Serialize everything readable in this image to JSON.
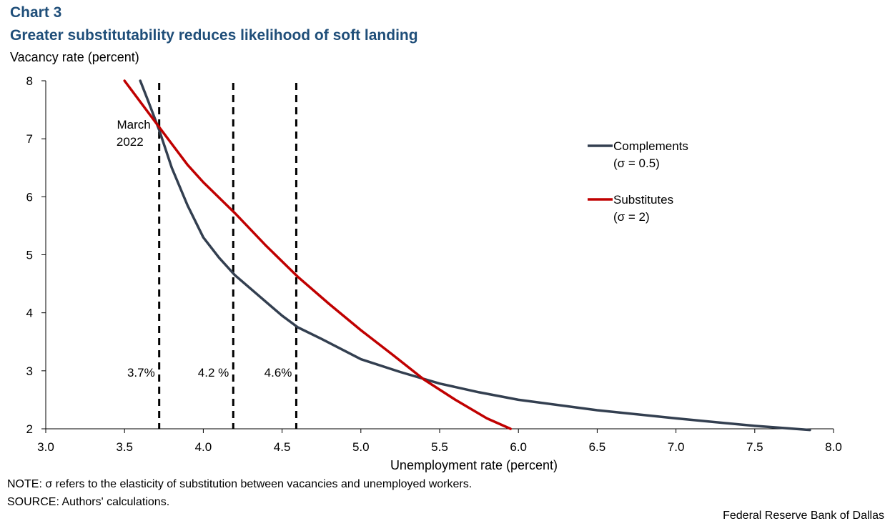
{
  "header": {
    "chart_label": "Chart 3",
    "title": "Greater substitutability reduces likelihood of soft landing",
    "y_axis_title": "Vacancy rate (percent)"
  },
  "footer": {
    "note": "NOTE: σ refers to the elasticity of substitution between vacancies and unemployed workers.",
    "source": "SOURCE: Authors' calculations.",
    "credit": "Federal Reserve  Bank of Dallas"
  },
  "chart_data": {
    "type": "line",
    "title": "Greater substitutability reduces likelihood of soft landing",
    "xlabel": "Unemployment  rate (percent)",
    "ylabel": "Vacancy rate (percent)",
    "xlim": [
      3.0,
      8.0
    ],
    "ylim": [
      2,
      8
    ],
    "x_ticks": [
      3.0,
      3.5,
      4.0,
      4.5,
      5.0,
      5.5,
      6.0,
      6.5,
      7.0,
      7.5,
      8.0
    ],
    "x_tick_labels": [
      "3.0",
      "3.5",
      "4.0",
      "4.5",
      "5.0",
      "5.5",
      "6.0",
      "6.5",
      "7.0",
      "7.5",
      "8.0"
    ],
    "y_ticks": [
      2,
      3,
      4,
      5,
      6,
      7,
      8
    ],
    "y_tick_labels": [
      "2",
      "3",
      "4",
      "5",
      "6",
      "7",
      "8"
    ],
    "grid": false,
    "legend_position": "right",
    "series": [
      {
        "name": "Complements",
        "name_line2": "(σ = 0.5)",
        "color": "#333f50",
        "x": [
          3.6,
          3.65,
          3.72,
          3.8,
          3.9,
          4.0,
          4.1,
          4.2,
          4.35,
          4.5,
          4.6,
          4.75,
          5.0,
          5.25,
          5.5,
          5.75,
          6.0,
          6.5,
          7.0,
          7.5,
          7.85
        ],
        "y": [
          8.0,
          7.65,
          7.15,
          6.5,
          5.85,
          5.3,
          4.95,
          4.65,
          4.3,
          3.95,
          3.75,
          3.55,
          3.2,
          2.98,
          2.78,
          2.63,
          2.5,
          2.32,
          2.18,
          2.05,
          1.98
        ]
      },
      {
        "name": "Substitutes",
        "name_line2": "(σ = 2)",
        "color": "#c00000",
        "x": [
          3.5,
          3.72,
          3.9,
          4.0,
          4.2,
          4.4,
          4.6,
          4.8,
          5.0,
          5.2,
          5.4,
          5.6,
          5.8,
          5.95
        ],
        "y": [
          8.0,
          7.2,
          6.55,
          6.25,
          5.72,
          5.15,
          4.62,
          4.15,
          3.7,
          3.28,
          2.85,
          2.5,
          2.18,
          2.0
        ]
      }
    ],
    "reference_lines": [
      {
        "x": 3.72,
        "label": "3.7%"
      },
      {
        "x": 4.19,
        "label": "4.2 %"
      },
      {
        "x": 4.59,
        "label": "4.6%"
      }
    ],
    "annotations": [
      {
        "text_line1": "March",
        "text_line2": "2022",
        "x": 3.72,
        "y": 7.15
      }
    ]
  }
}
